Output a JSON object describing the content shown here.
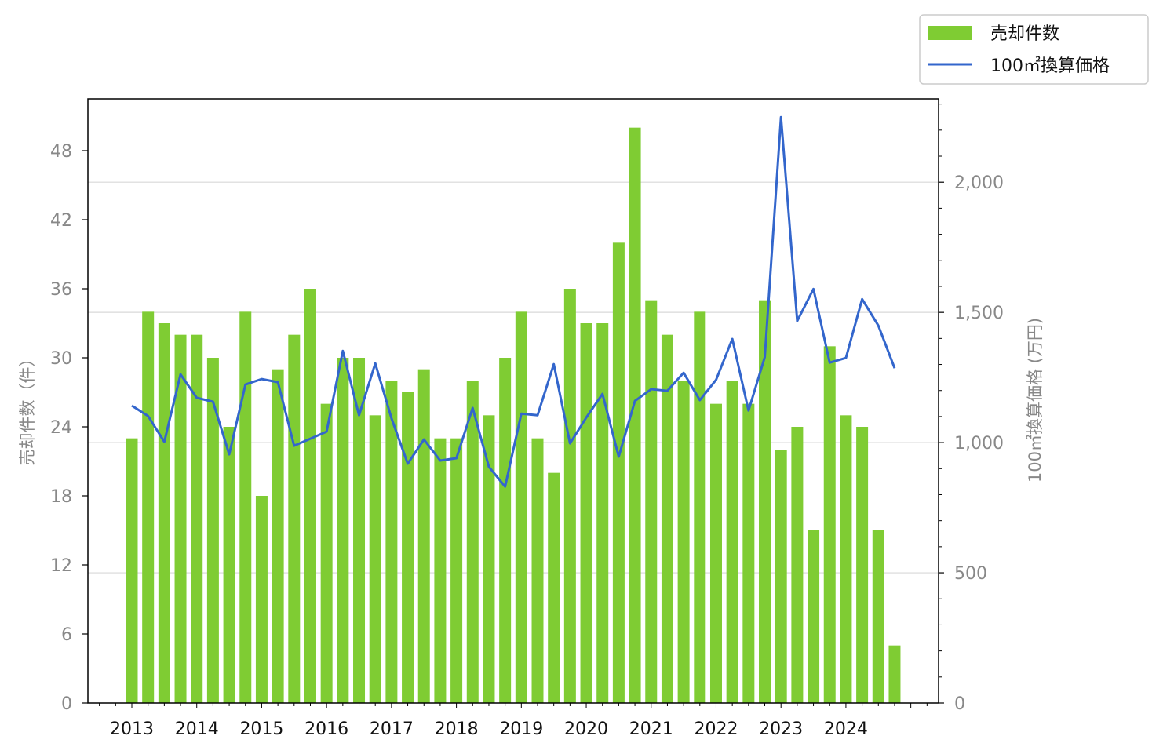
{
  "chart_data": {
    "type": "bar+line",
    "title": "",
    "xlabel": "",
    "ylabel_left": "売却件数（件）",
    "ylabel_right": "100㎡換算価格 (万円)",
    "x_tick_labels": [
      "2013",
      "2014",
      "2015",
      "2016",
      "2017",
      "2018",
      "2019",
      "2020",
      "2021",
      "2022",
      "2023",
      "2024"
    ],
    "x_periods": "quarterly, 2013 Q1 – 2024 Q4",
    "ylim_left": [
      0,
      52.5
    ],
    "yticks_left": [
      "0",
      "6",
      "12",
      "18",
      "24",
      "30",
      "36",
      "42",
      "48"
    ],
    "ylim_right": [
      0,
      2320
    ],
    "yticks_right": [
      "0",
      "500",
      "1,000",
      "1,500",
      "2,000"
    ],
    "grid": "horizontal at right-axis ticks",
    "legend_position": "top-right, outside",
    "series": [
      {
        "name": "売却件数",
        "type": "bar",
        "color": "#7fcc33",
        "axis": "left",
        "values": [
          23,
          34,
          33,
          32,
          32,
          30,
          24,
          34,
          18,
          29,
          32,
          36,
          26,
          30,
          30,
          25,
          28,
          27,
          29,
          23,
          23,
          28,
          25,
          30,
          34,
          23,
          20,
          36,
          33,
          33,
          40,
          50,
          35,
          32,
          28,
          34,
          26,
          28,
          26,
          35,
          22,
          24,
          15,
          31,
          25,
          24,
          15,
          5
        ]
      },
      {
        "name": "100㎡換算価格",
        "type": "line",
        "color": "#3366cc",
        "axis": "right",
        "values": [
          1142,
          1102,
          1003,
          1262,
          1172,
          1157,
          955,
          1223,
          1244,
          1232,
          988,
          1015,
          1042,
          1352,
          1105,
          1304,
          1093,
          919,
          1012,
          931,
          940,
          1133,
          907,
          831,
          1111,
          1105,
          1301,
          997,
          1096,
          1187,
          946,
          1160,
          1205,
          1199,
          1268,
          1163,
          1241,
          1398,
          1123,
          1328,
          2250,
          1467,
          1590,
          1307,
          1325,
          1551,
          1449,
          1286
        ]
      }
    ]
  }
}
